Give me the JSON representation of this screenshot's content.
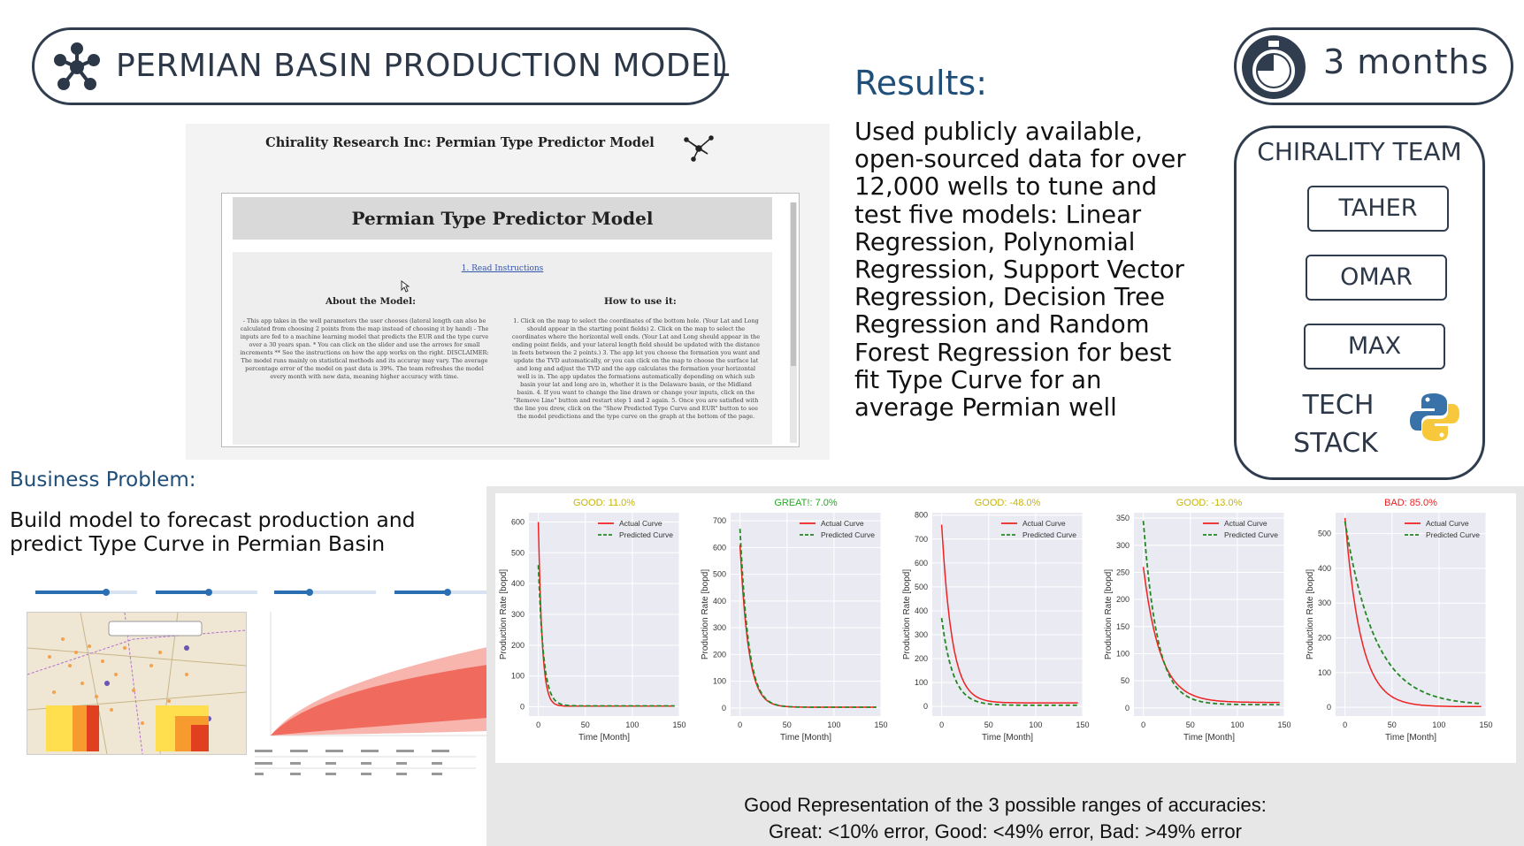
{
  "header": {
    "title": "PERMIAN BASIN PRODUCTION MODEL",
    "duration": "3 months"
  },
  "results": {
    "heading": "Results:",
    "body": "Used publicly available, open-sourced data for over 12,000 wells to tune and test five models: Linear Regression, Polynomial Regression, Support Vector Regression, Decision Tree Regression and Random Forest Regression for best fit Type Curve for an average Permian well"
  },
  "team": {
    "title": "CHIRALITY TEAM",
    "members": [
      "TAHER",
      "OMAR",
      "MAX"
    ],
    "tech_label_1": "TECH",
    "tech_label_2": "STACK"
  },
  "business": {
    "heading": "Business Problem:",
    "body": "Build model to forecast production and predict Type Curve in Permian Basin"
  },
  "app_screenshot": {
    "title": "Chirality Research Inc: Permian Type Predictor Model",
    "header": "Permian Type Predictor Model",
    "link": "1. Read Instructions",
    "about_title": "About the Model:",
    "howto_title": "How to use it:",
    "about_text": "- This app takes in the well parameters the user chooses (lateral length can also be calculated from choosing 2 points from the map instead of choosing it by hand) - The inputs are fed to a machine learning model that predicts the EUR and the type curve over a 30 years span. * You can click on the slider and use the arrows for small increments ** See the instructions on how the app works on the right. DISCLAIMER: The model runs mainly on statistical methods and its accuray may vary. The average percentage error of the model on past data is 39%. The team refreshes the model every month with new data, meaning higher accuracy with time.",
    "howto_text": "1. Click on the map to select the coordinates of the bottom hole. (Your Lat and Long should appear in the starting point fields) 2. Click on the map to select the coordinates where the horizontal well ends. (Your Lat and Long should appear in the ending point fields, and your lateral length field should be updated with the distance in feets between the 2 points.) 3. The app let you choose the formation you want and update the TVD automatically, or you can click on the map to choose the surface lat and long and adjust the TVD and the app calculates the formation your horizontal well is in. The app updates the formations automatically depending on which sub basin your lat and long are in, whether it is the Delaware basin, or the Midland basin. 4. If you want to change the line drawn or change your inputs, click on the \"Remove Line\" button and restart step 1 and 2 again. 5. Once you are satisfied with the line you drew, click on the \"Show Predicted Type Curve and EUR\" button to see the model predictions and the type curve on the graph at the bottom of the page."
  },
  "chart_data": [
    {
      "type": "line",
      "title": "GOOD: 11.0%",
      "title_color": "#c8b400",
      "xlabel": "Time [Month]",
      "ylabel": "Production Rate [bopd]",
      "xlim": [
        -10,
        150
      ],
      "ylim": [
        -30,
        630
      ],
      "xticks": [
        0,
        50,
        100,
        150
      ],
      "yticks": [
        0,
        100,
        200,
        300,
        400,
        500,
        600
      ],
      "legend": "top-right",
      "series": [
        {
          "name": "Actual Curve",
          "color": "#ee2222",
          "dash": false,
          "q0": 600,
          "tau": 4,
          "floor": 2
        },
        {
          "name": "Predicted Curve",
          "color": "#228822",
          "dash": true,
          "q0": 460,
          "tau": 5.5,
          "floor": 3
        }
      ]
    },
    {
      "type": "line",
      "title": "GREAT!: 7.0%",
      "title_color": "#22aa22",
      "xlabel": "Time [Month]",
      "ylabel": "Production Rate [bopd]",
      "xlim": [
        -10,
        150
      ],
      "ylim": [
        -30,
        730
      ],
      "xticks": [
        0,
        50,
        100,
        150
      ],
      "yticks": [
        0,
        100,
        200,
        300,
        400,
        500,
        600,
        700
      ],
      "legend": "top-right",
      "series": [
        {
          "name": "Actual Curve",
          "color": "#ee2222",
          "dash": false,
          "q0": 610,
          "tau": 9,
          "floor": 3
        },
        {
          "name": "Predicted Curve",
          "color": "#228822",
          "dash": true,
          "q0": 670,
          "tau": 9,
          "floor": 3
        }
      ]
    },
    {
      "type": "line",
      "title": "GOOD: -48.0%",
      "title_color": "#c8b400",
      "xlabel": "Time [Month]",
      "ylabel": "Production Rate [bopd]",
      "xlim": [
        -10,
        150
      ],
      "ylim": [
        -40,
        810
      ],
      "xticks": [
        0,
        50,
        100,
        150
      ],
      "yticks": [
        0,
        100,
        200,
        300,
        400,
        500,
        600,
        700,
        800
      ],
      "legend": "top-right",
      "series": [
        {
          "name": "Actual Curve",
          "color": "#ee2222",
          "dash": false,
          "q0": 760,
          "tau": 11,
          "floor": 15
        },
        {
          "name": "Predicted Curve",
          "color": "#228822",
          "dash": true,
          "q0": 370,
          "tau": 12,
          "floor": 5
        }
      ]
    },
    {
      "type": "line",
      "title": "GOOD: -13.0%",
      "title_color": "#c8b400",
      "xlabel": "Time [Month]",
      "ylabel": "Production Rate [bopd]",
      "xlim": [
        -10,
        150
      ],
      "ylim": [
        -15,
        360
      ],
      "xticks": [
        0,
        50,
        100,
        150
      ],
      "yticks": [
        0,
        50,
        100,
        150,
        200,
        250,
        300,
        350
      ],
      "legend": "top-right",
      "series": [
        {
          "name": "Actual Curve",
          "color": "#ee2222",
          "dash": false,
          "q0": 260,
          "tau": 18,
          "floor": 10
        },
        {
          "name": "Predicted Curve",
          "color": "#228822",
          "dash": true,
          "q0": 345,
          "tau": 15,
          "floor": 6
        }
      ]
    },
    {
      "type": "line",
      "title": "BAD: 85.0%",
      "title_color": "#e82020",
      "xlabel": "Time [Month]",
      "ylabel": "Production Rate [bopd]",
      "xlim": [
        -10,
        150
      ],
      "ylim": [
        -25,
        560
      ],
      "xticks": [
        0,
        50,
        100,
        150
      ],
      "yticks": [
        0,
        100,
        200,
        300,
        400,
        500
      ],
      "legend": "top-right",
      "series": [
        {
          "name": "Actual Curve",
          "color": "#ee2222",
          "dash": false,
          "q0": 545,
          "tau": 17,
          "floor": 2
        },
        {
          "name": "Predicted Curve",
          "color": "#228822",
          "dash": true,
          "q0": 535,
          "tau": 32,
          "floor": 5
        }
      ]
    }
  ],
  "charts_caption": {
    "line1": "Good Representation of the 3 possible ranges of accuracies:",
    "line2": "Great: <10% error, Good: <49% error, Bad: >49% error"
  },
  "colors": {
    "accent": "#1f4e79",
    "outline": "#2f3d4f",
    "actual": "#ee2222",
    "predicted": "#228822"
  }
}
